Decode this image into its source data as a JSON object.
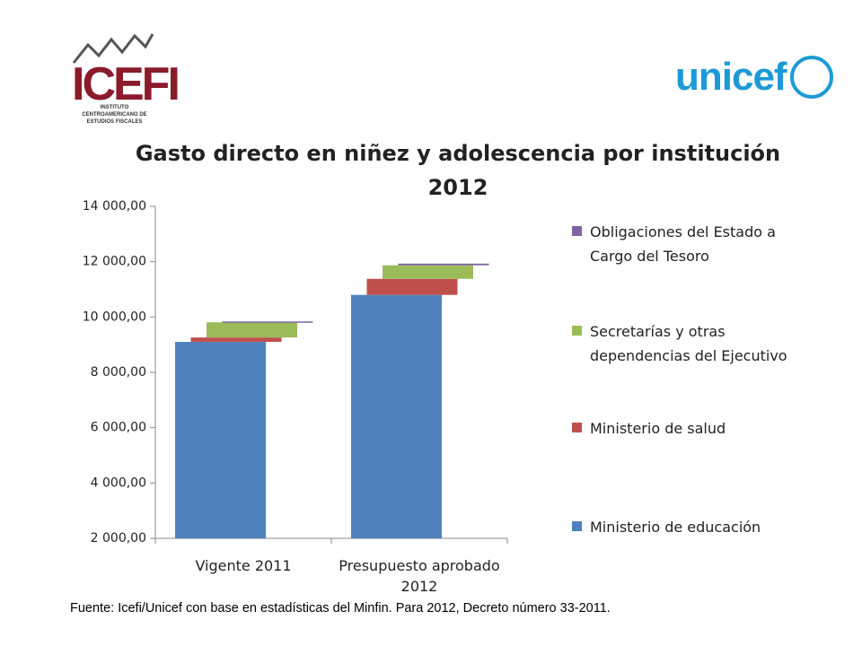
{
  "logos": {
    "left": "ICEFI",
    "left_subtitle": "INSTITUTO CENTROAMERICANO DE ESTUDIOS FISCALES",
    "right": "unicef"
  },
  "chart_data": {
    "type": "waterfall-stack",
    "title": "Gasto directo en niñez y adolescencia por institución 2012",
    "categories": [
      "Vigente 2011",
      "Presupuesto aprobado 2012"
    ],
    "series": [
      {
        "name": "Ministerio de educación",
        "color": "#4f81bd",
        "values": [
          9100,
          10800
        ]
      },
      {
        "name": "Ministerio de salud",
        "color": "#c0504d",
        "values": [
          160,
          580
        ]
      },
      {
        "name": "Secretarías y otras dependencias del Ejecutivo",
        "color": "#9bbb59",
        "values": [
          550,
          490
        ]
      },
      {
        "name": "Obligaciones del Estado a Cargo del Tesoro",
        "color": "#8064a2",
        "values": [
          30,
          60
        ]
      }
    ],
    "ylim": [
      2000,
      14000
    ],
    "yticks": [
      {
        "value": 2000,
        "label": "2 000,00"
      },
      {
        "value": 4000,
        "label": "4 000,00"
      },
      {
        "value": 6000,
        "label": "6 000,00"
      },
      {
        "value": 8000,
        "label": "8 000,00"
      },
      {
        "value": 10000,
        "label": "10 000,00"
      },
      {
        "value": 12000,
        "label": "12 000,00"
      },
      {
        "value": 14000,
        "label": "14 000,00"
      }
    ],
    "grid": false,
    "legend": "right",
    "source": "Fuente: Icefi/Unicef con base en estadísticas del Minfin. Para 2012, Decreto número 33-2011."
  }
}
